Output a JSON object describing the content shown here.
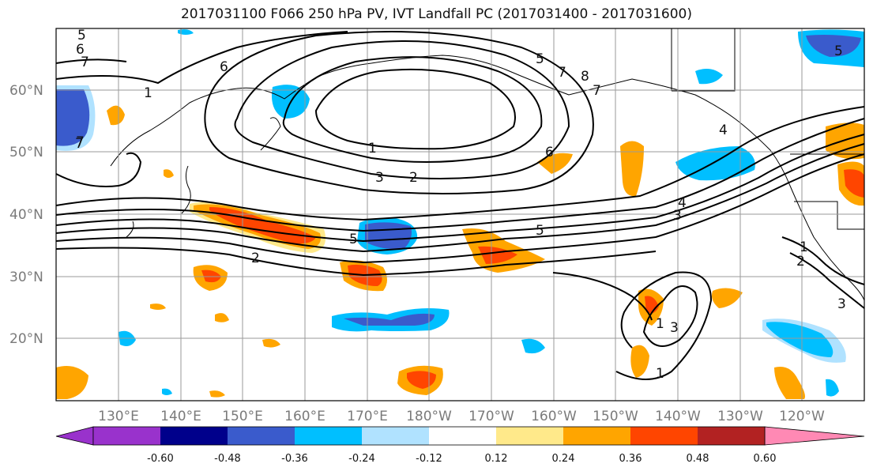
{
  "title": "2017031100 F066 250 hPa PV, IVT Landfall PC (2017031400 - 2017031600)",
  "lat_labels": [
    "60°N",
    "50°N",
    "40°N",
    "30°N",
    "20°N"
  ],
  "lon_labels": [
    "130°E",
    "140°E",
    "150°E",
    "160°E",
    "170°E",
    "180°W",
    "170°W",
    "160°W",
    "150°W",
    "140°W",
    "130°W",
    "120°W"
  ],
  "colorbar": {
    "colors": [
      "#9932CC",
      "#00008B",
      "#3A5BCC",
      "#00BFFF",
      "#B0E2FF",
      "#FFFFFF",
      "#FFE98A",
      "#FFA500",
      "#FF4500",
      "#B22222",
      "#FF89B4"
    ],
    "labels": [
      "-0.60",
      "-0.48",
      "-0.36",
      "-0.24",
      "-0.12",
      "0.12",
      "0.24",
      "0.36",
      "0.48",
      "0.60"
    ]
  },
  "contour_labels": [
    "5",
    "6",
    "7",
    "7",
    "1",
    "1",
    "2",
    "3",
    "6",
    "7",
    "8",
    "5",
    "5",
    "2",
    "5",
    "3",
    "4",
    "1",
    "2",
    "3",
    "1",
    "3",
    "1",
    "4",
    "6",
    "5",
    "7",
    "7"
  ],
  "colors": {
    "pos_core": "#FF4500",
    "pos_mid": "#FFA500",
    "pos_edge": "#FFE98A",
    "neg_core": "#3A5BCC",
    "neg_mid": "#00BFFF",
    "neg_edge": "#B0E2FF"
  }
}
